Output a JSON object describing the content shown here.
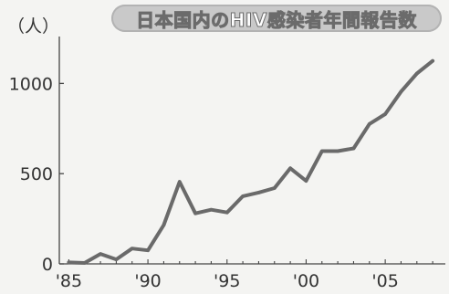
{
  "chart_data": {
    "type": "line",
    "title": "日本国内のHIV感染者年間報告数",
    "ylabel": "（人）",
    "xlabel": "",
    "x": [
      1985,
      1986,
      1987,
      1988,
      1989,
      1990,
      1991,
      1992,
      1993,
      1994,
      1995,
      1996,
      1997,
      1998,
      1999,
      2000,
      2001,
      2002,
      2003,
      2004,
      2005,
      2006,
      2007,
      2008
    ],
    "y": [
      8,
      5,
      55,
      25,
      85,
      75,
      215,
      455,
      280,
      300,
      285,
      375,
      395,
      420,
      530,
      460,
      625,
      625,
      640,
      775,
      830,
      955,
      1055,
      1125
    ],
    "x_ticks": [
      {
        "value": 1985,
        "label": "'85"
      },
      {
        "value": 1990,
        "label": "'90"
      },
      {
        "value": 1995,
        "label": "'95"
      },
      {
        "value": 2000,
        "label": "'00"
      },
      {
        "value": 2005,
        "label": "'05"
      }
    ],
    "y_ticks": [
      {
        "value": 0,
        "label": "0"
      },
      {
        "value": 500,
        "label": "500"
      },
      {
        "value": 1000,
        "label": "1000"
      }
    ],
    "xlim": [
      1984.4,
      2008.8
    ],
    "ylim": [
      0,
      1260
    ],
    "grid": false,
    "line_color": "#6a6a6a",
    "axis_color": "#444444"
  }
}
